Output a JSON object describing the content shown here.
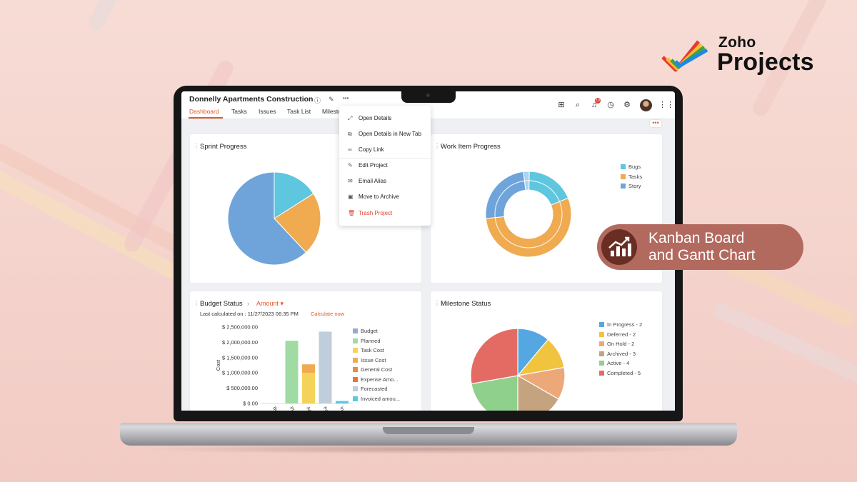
{
  "brand": {
    "zoho": "Zoho",
    "projects": "Projects"
  },
  "promo": {
    "line1": "Kanban Board",
    "line2": "and Gantt Chart"
  },
  "project": {
    "title": "Donnelly Apartments Construction"
  },
  "tabs": [
    {
      "label": "Dashboard",
      "active": true
    },
    {
      "label": "Tasks"
    },
    {
      "label": "Issues"
    },
    {
      "label": "Task List"
    },
    {
      "label": "Milestones"
    }
  ],
  "header": {
    "notification_count": "10",
    "more_dots": "•••",
    "menu_dots": "•••"
  },
  "menu": {
    "items": [
      {
        "label": "Open Details",
        "icon": "expand-icon"
      },
      {
        "label": "Open Details in New Tab",
        "icon": "new-tab-icon"
      },
      {
        "label": "Copy Link",
        "icon": "link-icon"
      },
      {
        "label": "Edit Project",
        "icon": "pencil-icon"
      },
      {
        "label": "Email Alias",
        "icon": "mail-icon"
      },
      {
        "label": "Move to Archive",
        "icon": "archive-icon"
      },
      {
        "label": "Trash Project",
        "icon": "trash-icon"
      }
    ]
  },
  "cards": {
    "sprint_progress": {
      "title": "Sprint Progress"
    },
    "work_item_progress": {
      "title": "Work Item Progress"
    },
    "budget_status": {
      "title": "Budget Status",
      "selector": "Amount",
      "last_calc_label": "Last calculated on : 11/27/2023 06:35 PM",
      "calculate_now": "Calculate now"
    },
    "milestone_status": {
      "title": "Milestone Status"
    }
  },
  "chart_data": [
    {
      "type": "pie",
      "title": "Sprint Progress",
      "values": [
        62,
        22,
        16
      ],
      "colors": [
        "#6fa4db",
        "#f0aa4f",
        "#5ec6df"
      ]
    },
    {
      "type": "pie",
      "title": "Work Item Progress",
      "series": [
        {
          "name": "Bugs",
          "color": "#5ec6df",
          "value": 18
        },
        {
          "name": "Tasks",
          "color": "#f0aa4f",
          "value": 53
        },
        {
          "name": "Story",
          "color": "#6fa4db",
          "value": 24
        }
      ],
      "legend": "right"
    },
    {
      "type": "bar",
      "title": "Budget Status",
      "ylabel": "Cost",
      "ylim": [
        0,
        2500000
      ],
      "yticks": [
        "$ 2,500,000.00",
        "$ 2,000,000.00",
        "$ 1,500,000.00",
        "$ 1,000,000.00",
        "$ 500,000.00",
        "$ 0.00"
      ],
      "categories": [
        "Bu",
        "Pl",
        "Ac",
        "Fo",
        "In"
      ],
      "series": [
        {
          "name": "Budget",
          "color": "#94a9d4"
        },
        {
          "name": "Planned",
          "color": "#9fdba3"
        },
        {
          "name": "Task Cost",
          "color": "#f5d35a"
        },
        {
          "name": "Issue Cost",
          "color": "#f0aa4f"
        },
        {
          "name": "General Cost",
          "color": "#e88a4a"
        },
        {
          "name": "Expense Amo...",
          "color": "#e6763f"
        },
        {
          "name": "Forecasted",
          "color": "#c0cddb"
        },
        {
          "name": "Invoiced amou...",
          "color": "#5ec6df"
        }
      ],
      "bars": [
        {
          "category": "Bu",
          "segments": []
        },
        {
          "category": "Pl",
          "segments": [
            {
              "series": "Planned",
              "value": 2050000
            }
          ]
        },
        {
          "category": "Ac",
          "segments": [
            {
              "series": "Task Cost",
              "value": 1000000
            },
            {
              "series": "Issue Cost",
              "value": 280000
            }
          ]
        },
        {
          "category": "Fo",
          "segments": [
            {
              "series": "Forecasted",
              "value": 2350000
            }
          ]
        },
        {
          "category": "In",
          "segments": [
            {
              "series": "Invoiced amou...",
              "value": 80000
            }
          ]
        }
      ],
      "legend": "right"
    },
    {
      "type": "pie",
      "title": "Milestone Status",
      "series": [
        {
          "name": "In Progress - 2",
          "color": "#54a7e0",
          "value": 2
        },
        {
          "name": "Deferred - 2",
          "color": "#f0c43f",
          "value": 2
        },
        {
          "name": "On Hold - 2",
          "color": "#eda87a",
          "value": 2
        },
        {
          "name": "Archived - 3",
          "color": "#c4a37f",
          "value": 3
        },
        {
          "name": "Active - 4",
          "color": "#8fd08c",
          "value": 4
        },
        {
          "name": "Completed - 5",
          "color": "#e46b63",
          "value": 5
        }
      ],
      "legend": "right"
    }
  ]
}
